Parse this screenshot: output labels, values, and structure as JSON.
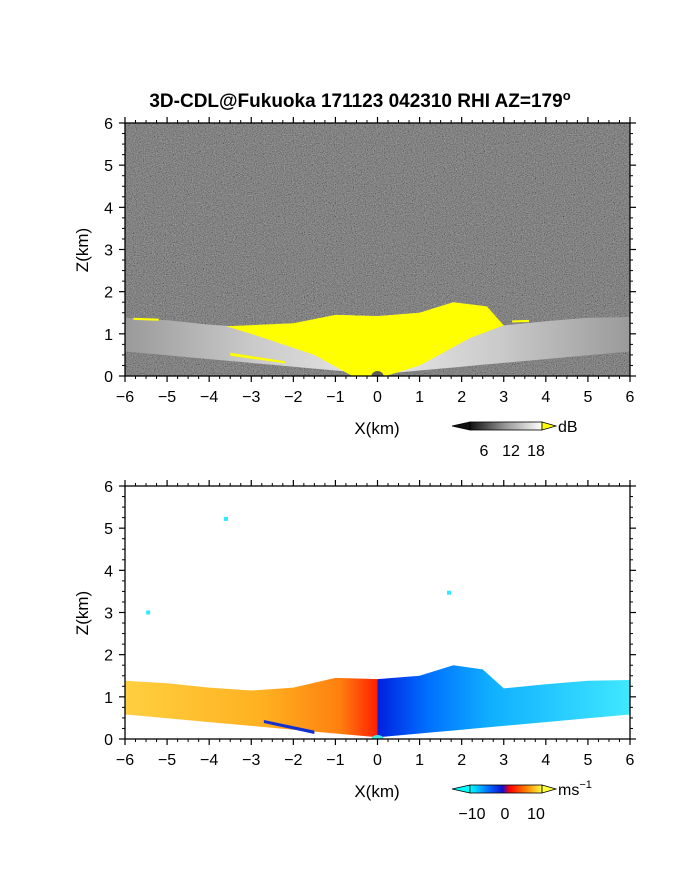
{
  "title": "3D-CDL@Fukuoka 171123 042310 RHI AZ=179",
  "title_superscript": "o",
  "chart_data": [
    {
      "type": "heatmap",
      "quantity": "reflectivity",
      "xlabel": "X(km)",
      "ylabel": "Z(km)",
      "xlim": [
        -6,
        6
      ],
      "ylim": [
        0,
        6
      ],
      "xticks": [
        "-6",
        "-5",
        "-4",
        "-3",
        "-2",
        "-1",
        "0",
        "1",
        "2",
        "3",
        "4",
        "5",
        "6"
      ],
      "yticks": [
        "0",
        "1",
        "2",
        "3",
        "4",
        "5",
        "6"
      ],
      "grid": false,
      "colorbar": {
        "label": "dB",
        "ticks": [
          "6",
          "12",
          "18"
        ],
        "range": [
          0,
          20
        ],
        "colors": {
          "low": "#101010",
          "mid": "#9a9a9a",
          "high": "#ffffff",
          "over": "#ffff00"
        }
      },
      "echo_top_km": [
        [
          -6,
          1.38
        ],
        [
          -5,
          1.32
        ],
        [
          -4,
          1.22
        ],
        [
          -3,
          1.15
        ],
        [
          -2,
          1.22
        ],
        [
          -1,
          1.45
        ],
        [
          0,
          1.42
        ],
        [
          1,
          1.5
        ],
        [
          1.8,
          1.75
        ],
        [
          2.5,
          1.65
        ],
        [
          3,
          1.2
        ],
        [
          4,
          1.3
        ],
        [
          5,
          1.38
        ],
        [
          6,
          1.4
        ]
      ],
      "background": "noise",
      "colors": {
        "background_noise": "#2b2b2b",
        "echo_gray": "#c8c8c8",
        "saturated": "#ffff00"
      }
    },
    {
      "type": "heatmap",
      "quantity": "radial_velocity",
      "xlabel": "X(km)",
      "ylabel": "Z(km)",
      "xlim": [
        -6,
        6
      ],
      "ylim": [
        0,
        6
      ],
      "xticks": [
        "-6",
        "-5",
        "-4",
        "-3",
        "-2",
        "-1",
        "0",
        "1",
        "2",
        "3",
        "4",
        "5",
        "6"
      ],
      "yticks": [
        "0",
        "1",
        "2",
        "3",
        "4",
        "5",
        "6"
      ],
      "grid": false,
      "colorbar": {
        "label": "ms",
        "label_exponent": "−1",
        "ticks": [
          "−10",
          "0",
          "10"
        ],
        "range": [
          -15,
          15
        ],
        "colors": [
          "#00ffff",
          "#0070ff",
          "#1010d0",
          "#ff0000",
          "#ff8000",
          "#ffff40"
        ]
      },
      "echo_top_km": [
        [
          -6,
          1.38
        ],
        [
          -5,
          1.32
        ],
        [
          -4,
          1.22
        ],
        [
          -3,
          1.15
        ],
        [
          -2,
          1.22
        ],
        [
          -1,
          1.45
        ],
        [
          0,
          1.42
        ],
        [
          1,
          1.5
        ],
        [
          1.8,
          1.75
        ],
        [
          2.5,
          1.65
        ],
        [
          3,
          1.2
        ],
        [
          4,
          1.3
        ],
        [
          5,
          1.38
        ],
        [
          6,
          1.4
        ]
      ],
      "velocity_sign": {
        "left_of_origin": "positive",
        "right_of_origin": "negative"
      },
      "isolated_pixels_km": [
        [
          -3.6,
          5.22
        ],
        [
          -5.45,
          3.0
        ],
        [
          1.7,
          3.47
        ]
      ]
    }
  ]
}
